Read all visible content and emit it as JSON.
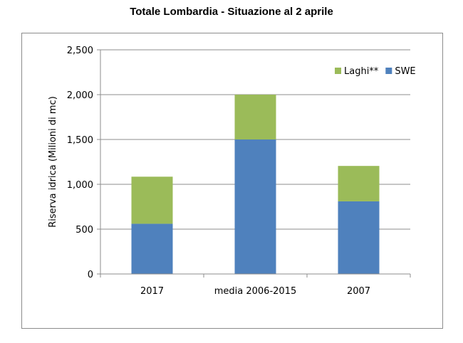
{
  "chart_data": {
    "type": "bar",
    "stacked": true,
    "title": "Totale Lombardia - Situazione al 2 aprile",
    "xlabel": "",
    "ylabel": "Riserva idrica (Milioni di mc)",
    "categories": [
      "2017",
      "media 2006-2015",
      "2007"
    ],
    "series": [
      {
        "name": "SWE",
        "values": [
          560,
          1500,
          810
        ],
        "color": "#4f81bd"
      },
      {
        "name": "Laghi**",
        "values": [
          525,
          500,
          395
        ],
        "color": "#9bbb59"
      }
    ],
    "ylim": [
      0,
      2500
    ],
    "yticks": [
      0,
      500,
      1000,
      1500,
      2000,
      2500
    ],
    "ytick_labels": [
      "0",
      "500",
      "1,000",
      "1,500",
      "2,000",
      "2,500"
    ],
    "grid": true,
    "legend_position": "top-right",
    "legend_order": [
      "Laghi**",
      "SWE"
    ]
  }
}
